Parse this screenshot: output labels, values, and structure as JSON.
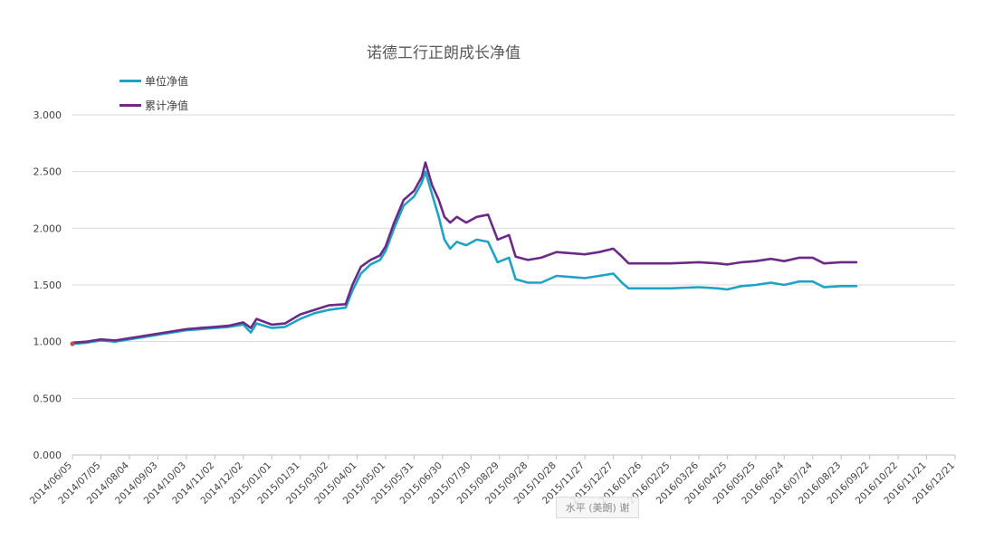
{
  "chart_data": {
    "type": "line",
    "title": "诺德工行正朗成长净值",
    "xlabel": "",
    "ylabel": "",
    "ylim": [
      0,
      3
    ],
    "yticks": [
      "0.000",
      "0.500",
      "1.000",
      "1.500",
      "2.000",
      "2.500",
      "3.000"
    ],
    "xlim": [
      "2014-06-05",
      "2016-12-21"
    ],
    "xticks": [
      "2014/06/05",
      "2014/07/05",
      "2014/08/04",
      "2014/09/03",
      "2014/10/03",
      "2014/11/02",
      "2014/12/02",
      "2015/01/01",
      "2015/01/31",
      "2015/03/02",
      "2015/04/01",
      "2015/05/01",
      "2015/05/31",
      "2015/06/30",
      "2015/07/30",
      "2015/08/29",
      "2015/09/28",
      "2015/10/28",
      "2015/11/27",
      "2015/12/27",
      "2016/01/26",
      "2016/02/25",
      "2016/03/26",
      "2016/04/25",
      "2016/05/25",
      "2016/06/24",
      "2016/07/24",
      "2016/08/23",
      "2016/09/22",
      "2016/10/22",
      "2016/11/21",
      "2016/12/21"
    ],
    "grid": true,
    "legend_position": "top-left",
    "series": [
      {
        "name": "单位净值",
        "color": "#1fa3c4",
        "points": [
          [
            "2014-06-05",
            0.98
          ],
          [
            "2014-06-20",
            0.99
          ],
          [
            "2014-07-05",
            1.01
          ],
          [
            "2014-07-20",
            1.0
          ],
          [
            "2014-08-04",
            1.02
          ],
          [
            "2014-08-19",
            1.04
          ],
          [
            "2014-09-03",
            1.06
          ],
          [
            "2014-09-18",
            1.08
          ],
          [
            "2014-10-03",
            1.1
          ],
          [
            "2014-10-18",
            1.11
          ],
          [
            "2014-11-02",
            1.12
          ],
          [
            "2014-11-17",
            1.13
          ],
          [
            "2014-12-02",
            1.15
          ],
          [
            "2014-12-10",
            1.08
          ],
          [
            "2014-12-16",
            1.16
          ],
          [
            "2015-01-01",
            1.12
          ],
          [
            "2015-01-15",
            1.13
          ],
          [
            "2015-01-31",
            1.2
          ],
          [
            "2015-02-15",
            1.25
          ],
          [
            "2015-03-02",
            1.28
          ],
          [
            "2015-03-20",
            1.3
          ],
          [
            "2015-03-27",
            1.45
          ],
          [
            "2015-04-05",
            1.6
          ],
          [
            "2015-04-15",
            1.68
          ],
          [
            "2015-04-25",
            1.72
          ],
          [
            "2015-05-01",
            1.8
          ],
          [
            "2015-05-10",
            2.0
          ],
          [
            "2015-05-20",
            2.2
          ],
          [
            "2015-05-31",
            2.28
          ],
          [
            "2015-06-08",
            2.4
          ],
          [
            "2015-06-12",
            2.5
          ],
          [
            "2015-06-19",
            2.3
          ],
          [
            "2015-06-26",
            2.1
          ],
          [
            "2015-07-02",
            1.9
          ],
          [
            "2015-07-08",
            1.82
          ],
          [
            "2015-07-15",
            1.88
          ],
          [
            "2015-07-25",
            1.85
          ],
          [
            "2015-08-05",
            1.9
          ],
          [
            "2015-08-17",
            1.88
          ],
          [
            "2015-08-27",
            1.7
          ],
          [
            "2015-09-08",
            1.74
          ],
          [
            "2015-09-15",
            1.55
          ],
          [
            "2015-09-28",
            1.52
          ],
          [
            "2015-10-12",
            1.52
          ],
          [
            "2015-10-28",
            1.58
          ],
          [
            "2015-11-12",
            1.57
          ],
          [
            "2015-11-27",
            1.56
          ],
          [
            "2015-12-12",
            1.58
          ],
          [
            "2015-12-27",
            1.6
          ],
          [
            "2016-01-05",
            1.52
          ],
          [
            "2016-01-12",
            1.47
          ],
          [
            "2016-01-26",
            1.47
          ],
          [
            "2016-02-25",
            1.47
          ],
          [
            "2016-03-26",
            1.48
          ],
          [
            "2016-04-15",
            1.47
          ],
          [
            "2016-04-25",
            1.46
          ],
          [
            "2016-05-10",
            1.49
          ],
          [
            "2016-05-25",
            1.5
          ],
          [
            "2016-06-10",
            1.52
          ],
          [
            "2016-06-24",
            1.5
          ],
          [
            "2016-07-10",
            1.53
          ],
          [
            "2016-07-24",
            1.53
          ],
          [
            "2016-08-05",
            1.48
          ],
          [
            "2016-08-23",
            1.49
          ],
          [
            "2016-09-08",
            1.49
          ]
        ]
      },
      {
        "name": "累计净值",
        "color": "#6b2a86",
        "points": [
          [
            "2014-06-05",
            0.99
          ],
          [
            "2014-06-20",
            1.0
          ],
          [
            "2014-07-05",
            1.02
          ],
          [
            "2014-07-20",
            1.01
          ],
          [
            "2014-08-04",
            1.03
          ],
          [
            "2014-08-19",
            1.05
          ],
          [
            "2014-09-03",
            1.07
          ],
          [
            "2014-09-18",
            1.09
          ],
          [
            "2014-10-03",
            1.11
          ],
          [
            "2014-10-18",
            1.12
          ],
          [
            "2014-11-02",
            1.13
          ],
          [
            "2014-11-17",
            1.14
          ],
          [
            "2014-12-02",
            1.17
          ],
          [
            "2014-12-10",
            1.12
          ],
          [
            "2014-12-16",
            1.2
          ],
          [
            "2015-01-01",
            1.15
          ],
          [
            "2015-01-15",
            1.16
          ],
          [
            "2015-01-31",
            1.24
          ],
          [
            "2015-02-15",
            1.28
          ],
          [
            "2015-03-02",
            1.32
          ],
          [
            "2015-03-20",
            1.33
          ],
          [
            "2015-03-27",
            1.5
          ],
          [
            "2015-04-05",
            1.66
          ],
          [
            "2015-04-15",
            1.72
          ],
          [
            "2015-04-25",
            1.76
          ],
          [
            "2015-05-01",
            1.84
          ],
          [
            "2015-05-10",
            2.05
          ],
          [
            "2015-05-20",
            2.25
          ],
          [
            "2015-05-31",
            2.33
          ],
          [
            "2015-06-08",
            2.45
          ],
          [
            "2015-06-12",
            2.58
          ],
          [
            "2015-06-19",
            2.38
          ],
          [
            "2015-06-26",
            2.25
          ],
          [
            "2015-07-02",
            2.1
          ],
          [
            "2015-07-08",
            2.05
          ],
          [
            "2015-07-15",
            2.1
          ],
          [
            "2015-07-25",
            2.05
          ],
          [
            "2015-08-05",
            2.1
          ],
          [
            "2015-08-17",
            2.12
          ],
          [
            "2015-08-27",
            1.9
          ],
          [
            "2015-09-08",
            1.94
          ],
          [
            "2015-09-15",
            1.75
          ],
          [
            "2015-09-28",
            1.72
          ],
          [
            "2015-10-12",
            1.74
          ],
          [
            "2015-10-28",
            1.79
          ],
          [
            "2015-11-12",
            1.78
          ],
          [
            "2015-11-27",
            1.77
          ],
          [
            "2015-12-12",
            1.79
          ],
          [
            "2015-12-27",
            1.82
          ],
          [
            "2016-01-05",
            1.75
          ],
          [
            "2016-01-12",
            1.69
          ],
          [
            "2016-01-26",
            1.69
          ],
          [
            "2016-02-25",
            1.69
          ],
          [
            "2016-03-26",
            1.7
          ],
          [
            "2016-04-15",
            1.69
          ],
          [
            "2016-04-25",
            1.68
          ],
          [
            "2016-05-10",
            1.7
          ],
          [
            "2016-05-25",
            1.71
          ],
          [
            "2016-06-10",
            1.73
          ],
          [
            "2016-06-24",
            1.71
          ],
          [
            "2016-07-10",
            1.74
          ],
          [
            "2016-07-24",
            1.74
          ],
          [
            "2016-08-05",
            1.69
          ],
          [
            "2016-08-23",
            1.7
          ],
          [
            "2016-09-08",
            1.7
          ]
        ]
      }
    ]
  },
  "watermark": "水平 (美朗) 谢"
}
